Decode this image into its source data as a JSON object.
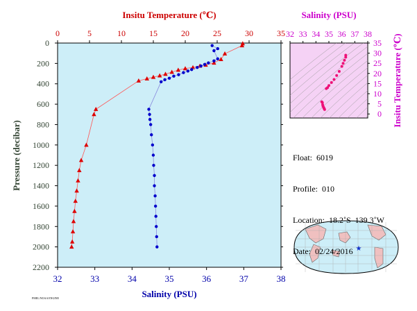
{
  "chart_data": [
    {
      "type": "scatter",
      "top_axis": {
        "label": "Insitu Temperature (℃)",
        "ticks": [
          0,
          5,
          10,
          15,
          20,
          25,
          30,
          35
        ],
        "range": [
          0,
          35
        ],
        "color": "#cc0000"
      },
      "bottom_axis": {
        "label": "Salinity (PSU)",
        "ticks": [
          32,
          33,
          34,
          35,
          36,
          37,
          38
        ],
        "range": [
          32,
          38
        ],
        "color": "#0000aa"
      },
      "y_axis": {
        "label": "Pressure (decibar)",
        "ticks": [
          0,
          200,
          400,
          600,
          800,
          1000,
          1200,
          1400,
          1600,
          1800,
          2000,
          2200
        ],
        "range": [
          0,
          2200
        ],
        "inverted": true,
        "color": "#334433"
      },
      "background": "#cdeef8",
      "series": [
        {
          "color": "#dd0000",
          "marker": "triangle",
          "x_axis": "top",
          "points": [
            [
              29,
              5
            ],
            [
              28.9,
              25
            ],
            [
              26.2,
              105
            ],
            [
              25.6,
              160
            ],
            [
              24.5,
              195
            ],
            [
              23.2,
              215
            ],
            [
              22.3,
              225
            ],
            [
              21.2,
              240
            ],
            [
              20.0,
              250
            ],
            [
              18.9,
              265
            ],
            [
              17.9,
              285
            ],
            [
              16.9,
              305
            ],
            [
              16.0,
              320
            ],
            [
              15.0,
              335
            ],
            [
              14.0,
              350
            ],
            [
              12.7,
              370
            ],
            [
              6.0,
              650
            ],
            [
              5.7,
              700
            ],
            [
              4.5,
              1000
            ],
            [
              3.7,
              1150
            ],
            [
              3.4,
              1250
            ],
            [
              3.2,
              1350
            ],
            [
              3.0,
              1450
            ],
            [
              2.8,
              1550
            ],
            [
              2.65,
              1650
            ],
            [
              2.5,
              1750
            ],
            [
              2.4,
              1850
            ],
            [
              2.3,
              1950
            ],
            [
              2.2,
              2000
            ]
          ]
        },
        {
          "color": "#0000cc",
          "marker": "circle",
          "x_axis": "bottom",
          "points": [
            [
              36.15,
              25
            ],
            [
              36.3,
              55
            ],
            [
              36.2,
              75
            ],
            [
              36.3,
              155
            ],
            [
              36.2,
              175
            ],
            [
              36.05,
              195
            ],
            [
              35.95,
              210
            ],
            [
              35.85,
              225
            ],
            [
              35.75,
              240
            ],
            [
              35.6,
              260
            ],
            [
              35.5,
              275
            ],
            [
              35.38,
              290
            ],
            [
              35.25,
              310
            ],
            [
              35.12,
              325
            ],
            [
              35.0,
              345
            ],
            [
              34.88,
              360
            ],
            [
              34.78,
              380
            ],
            [
              34.45,
              650
            ],
            [
              34.47,
              700
            ],
            [
              34.48,
              750
            ],
            [
              34.5,
              800
            ],
            [
              34.52,
              900
            ],
            [
              34.55,
              1000
            ],
            [
              34.57,
              1100
            ],
            [
              34.58,
              1200
            ],
            [
              34.6,
              1300
            ],
            [
              34.6,
              1400
            ],
            [
              34.62,
              1500
            ],
            [
              34.63,
              1600
            ],
            [
              34.64,
              1700
            ],
            [
              34.65,
              1800
            ],
            [
              34.66,
              1900
            ],
            [
              34.67,
              2000
            ]
          ]
        }
      ]
    },
    {
      "type": "scatter",
      "x_axis": {
        "label": "Salinity (PSU)",
        "ticks": [
          32,
          33,
          34,
          35,
          36,
          37,
          38
        ],
        "range": [
          32,
          38
        ],
        "color": "#cc00cc"
      },
      "y_axis": {
        "label": "Insitu Temperature (℃)",
        "ticks": [
          0,
          5,
          10,
          15,
          20,
          25,
          30,
          35
        ],
        "range": [
          -2,
          35
        ],
        "color": "#cc00cc"
      },
      "background": "#f5d2f5",
      "series": [
        {
          "color": "#ee1177",
          "marker": "circle",
          "points": [
            [
              36.3,
              29
            ],
            [
              36.3,
              28
            ],
            [
              36.2,
              26.5
            ],
            [
              36.1,
              25
            ],
            [
              36.0,
              23.5
            ],
            [
              35.8,
              21
            ],
            [
              35.6,
              19
            ],
            [
              35.4,
              17
            ],
            [
              35.2,
              15.5
            ],
            [
              35.0,
              14
            ],
            [
              34.9,
              13
            ],
            [
              34.8,
              12.5
            ],
            [
              34.45,
              6
            ],
            [
              34.5,
              5.6
            ],
            [
              34.52,
              4.5
            ],
            [
              34.55,
              3.8
            ],
            [
              34.6,
              3.2
            ],
            [
              34.62,
              2.8
            ],
            [
              34.65,
              2.5
            ],
            [
              34.67,
              2.2
            ]
          ]
        }
      ]
    }
  ],
  "info": {
    "float": "Float:  6019",
    "profile": "Profile:  010",
    "location": "Location:  18.2˚S  139.3˚W",
    "date": "Date:  02/24/2016"
  },
  "map": {
    "ocean_color": "#cdeef8",
    "land_color": "#f0c0c0",
    "marker_color": "#1133cc"
  },
  "credit": "PMEL/NOAA ENGINE"
}
